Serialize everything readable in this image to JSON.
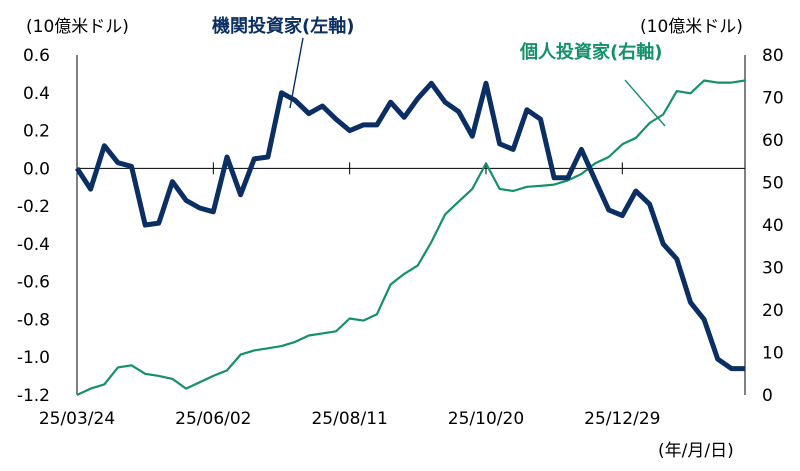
{
  "chart_data": {
    "type": "line",
    "left_unit": "(10億米ドル)",
    "right_unit": "(10億米ドル)",
    "x_unit": "(年/月/日)",
    "x_tick_labels": [
      "25/03/24",
      "25/06/02",
      "25/08/11",
      "25/10/20",
      "25/12/29"
    ],
    "x_count": 50,
    "x_tick_index": [
      0,
      10,
      20,
      30,
      40
    ],
    "y_left": {
      "min": -1.2,
      "max": 0.6,
      "ticks": [
        "0.6",
        "0.4",
        "0.2",
        "0.0",
        "-0.2",
        "-0.4",
        "-0.6",
        "-0.8",
        "-1.0",
        "-1.2"
      ]
    },
    "y_right": {
      "min": 0,
      "max": 80,
      "ticks": [
        "80",
        "70",
        "60",
        "50",
        "40",
        "30",
        "20",
        "10",
        "0"
      ]
    },
    "series": [
      {
        "name": "機関投資家(左軸)",
        "axis": "left",
        "color": "#0b2e63",
        "values": [
          0.0,
          -0.11,
          0.12,
          0.03,
          0.01,
          -0.3,
          -0.29,
          -0.07,
          -0.17,
          -0.21,
          -0.23,
          0.06,
          -0.14,
          0.05,
          0.06,
          0.4,
          0.36,
          0.29,
          0.33,
          0.26,
          0.2,
          0.23,
          0.23,
          0.35,
          0.27,
          0.37,
          0.45,
          0.35,
          0.3,
          0.17,
          0.45,
          0.13,
          0.1,
          0.31,
          0.26,
          -0.05,
          -0.05,
          0.1,
          -0.06,
          -0.22,
          -0.25,
          -0.12,
          -0.19,
          -0.4,
          -0.48,
          -0.71,
          -0.8,
          -1.01,
          -1.06,
          -1.06
        ]
      },
      {
        "name": "個人投資家(右軸)",
        "axis": "right",
        "color": "#149168",
        "values": [
          0.0,
          1.5,
          2.5,
          6.5,
          7.0,
          5.0,
          4.5,
          3.8,
          1.5,
          3.0,
          4.5,
          5.8,
          9.5,
          10.5,
          11.0,
          11.5,
          12.5,
          14.0,
          14.5,
          15.0,
          18.0,
          17.5,
          19.0,
          26.0,
          28.5,
          30.5,
          36.0,
          42.5,
          45.5,
          48.5,
          54.5,
          48.5,
          48.0,
          49.0,
          49.2,
          49.5,
          50.5,
          52.0,
          54.5,
          56.0,
          59.0,
          60.5,
          64.0,
          66.0,
          71.5,
          71.0,
          74.0,
          73.5,
          73.5,
          74.0
        ]
      }
    ]
  }
}
